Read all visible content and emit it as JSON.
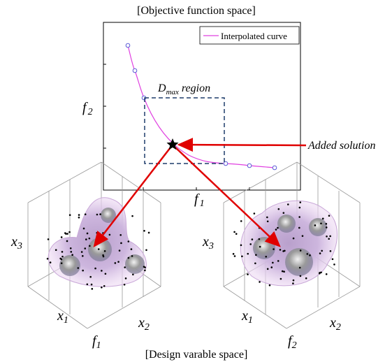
{
  "header": {
    "title": "[Objective function space]"
  },
  "legend": {
    "label": "Interpolated curve"
  },
  "region_label": {
    "base": "D",
    "sub": "max",
    "rest": "region"
  },
  "annotation": "Added solution",
  "objective_axes": {
    "y": {
      "base": "f",
      "sub": "2"
    },
    "x": {
      "base": "f",
      "sub": "1"
    }
  },
  "left_panel": {
    "x3": {
      "base": "x",
      "sub": "3"
    },
    "x1": {
      "base": "x",
      "sub": "1"
    },
    "x2": {
      "base": "x",
      "sub": "2"
    },
    "f": {
      "base": "f",
      "sub": "1"
    }
  },
  "right_panel": {
    "x3": {
      "base": "x",
      "sub": "3"
    },
    "x1": {
      "base": "x",
      "sub": "1"
    },
    "x2": {
      "base": "x",
      "sub": "2"
    },
    "f": {
      "base": "f",
      "sub": "2"
    }
  },
  "footer": {
    "title": "[Design varable space]"
  }
}
